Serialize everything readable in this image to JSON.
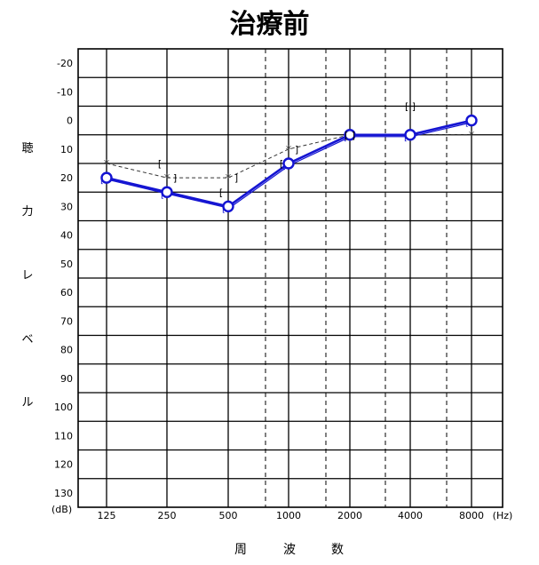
{
  "title": "治療前",
  "chart_data": {
    "type": "line",
    "title": "治療前",
    "x_unit": "(Hz)",
    "y_unit": "(dB)",
    "ylabel_chars": [
      "聴",
      "力",
      "レ",
      "ベ",
      "ル"
    ],
    "xlabel_chars": [
      "周",
      "波",
      "数"
    ],
    "categories": [
      "125",
      "250",
      "500",
      "1000",
      "2000",
      "4000",
      "8000"
    ],
    "ylim": [
      -20,
      130
    ],
    "y_ticks": [
      "-20",
      "-10",
      "0",
      "10",
      "20",
      "30",
      "40",
      "50",
      "60",
      "70",
      "80",
      "90",
      "100",
      "110",
      "120",
      "130"
    ],
    "y_reversed": true,
    "grid": true,
    "series": [
      {
        "marker": "O",
        "color": "#1414d2",
        "style": "solid",
        "values": [
          20,
          25,
          30,
          15,
          5,
          5,
          0
        ]
      },
      {
        "marker": "[",
        "color": "#1414d2",
        "style": "solid",
        "values": [
          20,
          25,
          30,
          15,
          5,
          5,
          0
        ]
      },
      {
        "marker": "*",
        "color": "#333333",
        "style": "dashed",
        "values": [
          15,
          20,
          20,
          10,
          5,
          5,
          5
        ]
      }
    ],
    "annotations": [
      {
        "text": "[",
        "x": "250",
        "y": 15
      },
      {
        "text": "]",
        "x": "250",
        "y": 20
      },
      {
        "text": "]",
        "x": "500",
        "y": 20
      },
      {
        "text": "[",
        "x": "500",
        "y": 25
      },
      {
        "text": "]",
        "x": "1000",
        "y": 10
      },
      {
        "text": "[",
        "x": "1000",
        "y": 15
      },
      {
        "text": "[ ]",
        "x": "2000",
        "y": 5
      },
      {
        "text": "[ ]",
        "x": "4000",
        "y": -5
      }
    ]
  }
}
